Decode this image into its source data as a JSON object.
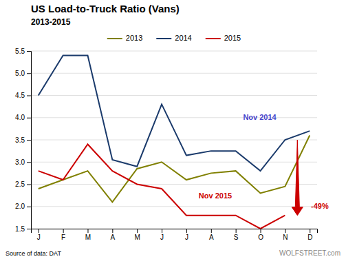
{
  "chart_data": {
    "type": "line",
    "title": "US Load-to-Truck Ratio (Vans)",
    "subtitle": "2013-2015",
    "categories": [
      "J",
      "F",
      "M",
      "A",
      "M",
      "J",
      "J",
      "A",
      "S",
      "O",
      "N",
      "D"
    ],
    "series": [
      {
        "name": "2013",
        "color": "#808000",
        "values": [
          2.4,
          2.6,
          2.8,
          2.1,
          2.85,
          3.0,
          2.6,
          2.75,
          2.8,
          2.3,
          2.45,
          3.6
        ]
      },
      {
        "name": "2014",
        "color": "#1a3a6b",
        "values": [
          4.5,
          5.4,
          5.4,
          3.05,
          2.9,
          4.3,
          3.15,
          3.25,
          3.25,
          2.8,
          3.5,
          3.7
        ]
      },
      {
        "name": "2015",
        "color": "#cc0000",
        "values": [
          2.8,
          2.6,
          3.4,
          2.8,
          2.5,
          2.4,
          1.8,
          1.8,
          1.8,
          1.5,
          1.8,
          null
        ]
      }
    ],
    "ylim": [
      1.5,
      5.5
    ],
    "yticks": [
      1.5,
      {
        "value": 2,
        "label": "2.0"
      },
      2.5,
      {
        "value": 3,
        "label": "3.0"
      },
      3.5,
      {
        "value": 4,
        "label": "4.0"
      },
      4.5,
      {
        "value": 5,
        "label": "5.0"
      },
      5.5
    ],
    "grid": true,
    "legend": "top",
    "annotations": [
      {
        "text": "Nov 2014",
        "x": 8.3,
        "y": 3.95,
        "color": "#4444cc"
      },
      {
        "text": "Nov 2015",
        "x": 6.5,
        "y": 2.18,
        "color": "#cc0000"
      },
      {
        "text": "-49%",
        "x": 11.05,
        "y": 2.0,
        "color": "#cc0000",
        "arrow": {
          "x": 10.5,
          "from": 3.5,
          "to": 1.8,
          "color": "#cc0000"
        }
      }
    ],
    "source": "Source of data: DAT",
    "watermark": "WOLFSTREET.com"
  }
}
